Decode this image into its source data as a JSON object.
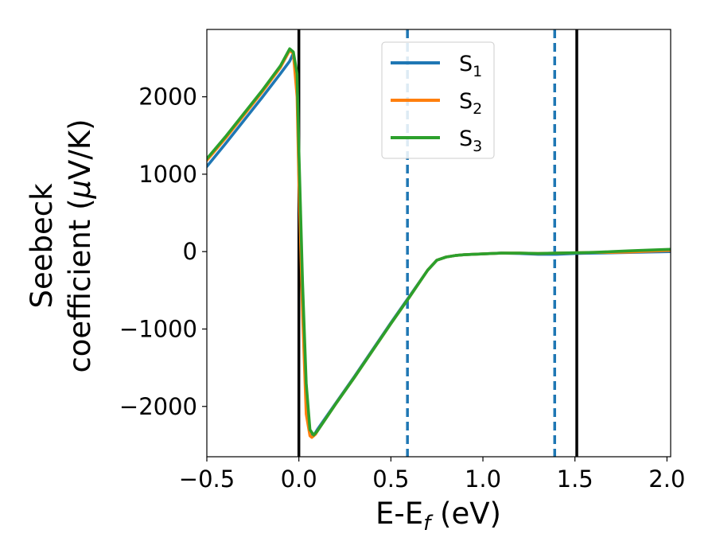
{
  "chart_data": {
    "type": "line",
    "xlabel": {
      "main": "E-E",
      "sub": "f",
      "suffix": " (eV)"
    },
    "ylabel": {
      "line1": "Seebeck",
      "line2_prefix": "coefficient  (",
      "line2_mu": "μ",
      "line2_suffix": "V/K)"
    },
    "xlim": [
      -0.5,
      2.02
    ],
    "ylim": [
      -2650,
      2870
    ],
    "xticks": [
      {
        "value": -0.5,
        "label": "−0.5"
      },
      {
        "value": 0.0,
        "label": "0.0"
      },
      {
        "value": 0.5,
        "label": "0.5"
      },
      {
        "value": 1.0,
        "label": "1.0"
      },
      {
        "value": 1.5,
        "label": "1.5"
      },
      {
        "value": 2.0,
        "label": "2.0"
      }
    ],
    "yticks": [
      {
        "value": -2000,
        "label": "−2000"
      },
      {
        "value": -1000,
        "label": "−1000"
      },
      {
        "value": 0,
        "label": "0"
      },
      {
        "value": 1000,
        "label": "1000"
      },
      {
        "value": 2000,
        "label": "2000"
      }
    ],
    "vlines": [
      {
        "x": 0.0,
        "style": "solid",
        "color": "#000000"
      },
      {
        "x": 1.51,
        "style": "solid",
        "color": "#000000"
      },
      {
        "x": 0.59,
        "style": "dashed",
        "color": "#1f77b4"
      },
      {
        "x": 1.39,
        "style": "dashed",
        "color": "#1f77b4"
      }
    ],
    "legend": {
      "placement": "upper-center",
      "entries": [
        {
          "base": "S",
          "sub": "1",
          "color": "#1f77b4"
        },
        {
          "base": "S",
          "sub": "2",
          "color": "#ff7f0e"
        },
        {
          "base": "S",
          "sub": "3",
          "color": "#2ca02c"
        }
      ]
    },
    "series": [
      {
        "color": "#1f77b4",
        "x": [
          -0.5,
          -0.4,
          -0.3,
          -0.2,
          -0.1,
          -0.05,
          -0.03,
          -0.01,
          0.0,
          0.02,
          0.04,
          0.06,
          0.08,
          0.1,
          0.2,
          0.3,
          0.4,
          0.5,
          0.6,
          0.7,
          0.75,
          0.8,
          0.85,
          0.9,
          1.0,
          1.1,
          1.2,
          1.3,
          1.4,
          1.5,
          1.6,
          1.7,
          1.8,
          1.9,
          2.02
        ],
        "y": [
          1100,
          1390,
          1690,
          1990,
          2300,
          2460,
          2560,
          2200,
          1000,
          -500,
          -1800,
          -2330,
          -2380,
          -2300,
          -1960,
          -1620,
          -1270,
          -920,
          -580,
          -240,
          -110,
          -70,
          -50,
          -40,
          -30,
          -20,
          -25,
          -35,
          -35,
          -25,
          -20,
          -15,
          -10,
          -5,
          0
        ]
      },
      {
        "color": "#ff7f0e",
        "x": [
          -0.5,
          -0.4,
          -0.3,
          -0.2,
          -0.1,
          -0.05,
          -0.03,
          -0.01,
          0.0,
          0.02,
          0.04,
          0.06,
          0.07,
          0.09,
          0.1,
          0.2,
          0.3,
          0.4,
          0.5,
          0.6,
          0.7,
          0.75,
          0.8,
          0.85,
          0.9,
          1.0,
          1.1,
          1.2,
          1.3,
          1.4,
          1.5,
          1.6,
          1.7,
          1.8,
          1.9,
          2.02
        ],
        "y": [
          1180,
          1460,
          1760,
          2060,
          2380,
          2600,
          2560,
          2000,
          900,
          -800,
          -2100,
          -2380,
          -2400,
          -2360,
          -2320,
          -1970,
          -1630,
          -1280,
          -930,
          -590,
          -240,
          -110,
          -70,
          -50,
          -40,
          -30,
          -20,
          -20,
          -25,
          -20,
          -15,
          -10,
          -10,
          -5,
          5,
          15
        ]
      },
      {
        "color": "#2ca02c",
        "x": [
          -0.5,
          -0.4,
          -0.3,
          -0.2,
          -0.1,
          -0.05,
          -0.03,
          -0.01,
          0.0,
          0.02,
          0.04,
          0.06,
          0.08,
          0.1,
          0.2,
          0.3,
          0.4,
          0.5,
          0.6,
          0.7,
          0.75,
          0.8,
          0.85,
          0.9,
          1.0,
          1.1,
          1.2,
          1.3,
          1.4,
          1.5,
          1.6,
          1.7,
          1.8,
          1.9,
          2.02
        ],
        "y": [
          1200,
          1480,
          1780,
          2080,
          2400,
          2620,
          2580,
          2300,
          1300,
          -400,
          -1700,
          -2300,
          -2370,
          -2320,
          -1970,
          -1630,
          -1280,
          -930,
          -590,
          -240,
          -110,
          -70,
          -50,
          -40,
          -30,
          -20,
          -20,
          -25,
          -20,
          -15,
          -10,
          0,
          10,
          20,
          30
        ]
      }
    ]
  }
}
